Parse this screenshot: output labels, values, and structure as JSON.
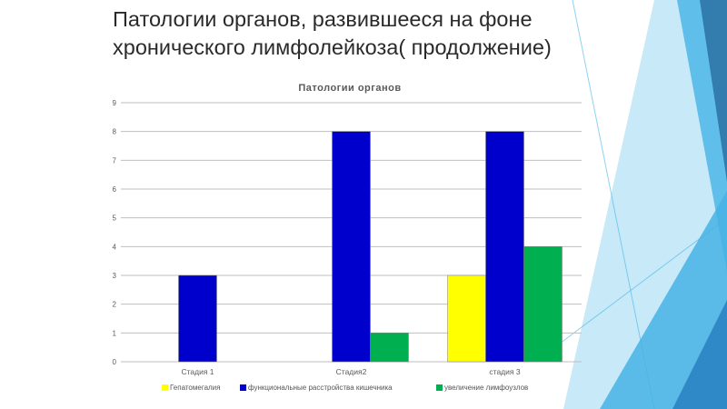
{
  "slide": {
    "title": "Патологии органов, развившееся на фоне\nхронического лимфолейкоза( продолжение)"
  },
  "colors": {
    "deco_light": "#9ad8f2",
    "deco_mid": "#46b3e6",
    "deco_dark": "#2a84c2",
    "deco_navy": "#1f5f94",
    "grid": "#bfbfbf"
  },
  "chart_data": {
    "type": "bar",
    "title": "Патологии органов",
    "categories": [
      "Стадия 1",
      "Стадия2",
      "стадия 3"
    ],
    "series": [
      {
        "name": "Гепатомегалия",
        "color": "#ffff00",
        "values": [
          0,
          0,
          3
        ]
      },
      {
        "name": "функциональные расстройства кишечника",
        "color": "#0000cc",
        "values": [
          3,
          8,
          8
        ]
      },
      {
        "name": "увеличение лимфоузлов",
        "color": "#00b050",
        "values": [
          0,
          1,
          4
        ]
      }
    ],
    "ylim": [
      0,
      9
    ],
    "yticks": [
      0,
      1,
      2,
      3,
      4,
      5,
      6,
      7,
      8,
      9
    ],
    "grid": true,
    "legend_position": "bottom"
  }
}
